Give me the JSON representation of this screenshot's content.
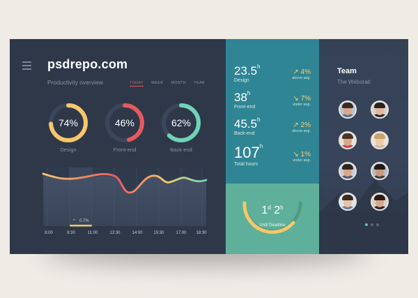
{
  "brand": "psdrepo.com",
  "subtitle": "Productivity overview",
  "tabs": [
    "TODAY",
    "WEEK",
    "MONTH",
    "YEAR"
  ],
  "active_tab": "TODAY",
  "donuts": [
    {
      "pct": "74%",
      "value": 74,
      "label": "Design",
      "color": "#f7c769"
    },
    {
      "pct": "46%",
      "value": 46,
      "label": "Front-end",
      "color": "#e45a5f"
    },
    {
      "pct": "62%",
      "value": 62,
      "label": "Back-end",
      "color": "#6fd3b8"
    }
  ],
  "chart_data": {
    "type": "line",
    "x": [
      "8:00",
      "9:30",
      "11:00",
      "12:30",
      "14:00",
      "15:30",
      "17:00",
      "18:30"
    ],
    "annotation": "0.7%",
    "highlight_column": "9:30"
  },
  "stats": [
    {
      "value": "23.5",
      "unit": "h",
      "label": "Design",
      "delta": "4%",
      "trend": "up",
      "note": "above avg."
    },
    {
      "value": "38",
      "unit": "h",
      "label": "Front-end",
      "delta": "7%",
      "trend": "down",
      "note": "under avg."
    },
    {
      "value": "45.5",
      "unit": "h",
      "label": "Back-end",
      "delta": "2%",
      "trend": "up",
      "note": "above avg."
    },
    {
      "value": "107",
      "unit": "h",
      "label": "Total hours",
      "delta": "1%",
      "trend": "down",
      "note": "under avg."
    }
  ],
  "deadline": {
    "days": "1",
    "days_unit": "d",
    "hours": "2",
    "hours_unit": "h",
    "label": "Until Deadline"
  },
  "team": {
    "title": "Team",
    "subtitle": "The Weborati",
    "pagination": {
      "pages": 3,
      "active": 1
    }
  },
  "colors": {
    "accent_red": "#e45a5f",
    "accent_yellow": "#f7c769",
    "accent_teal": "#6fd3b8",
    "panel_dark": "#2e3849",
    "panel_teal": "#2f8594",
    "panel_green": "#5fb09a"
  }
}
